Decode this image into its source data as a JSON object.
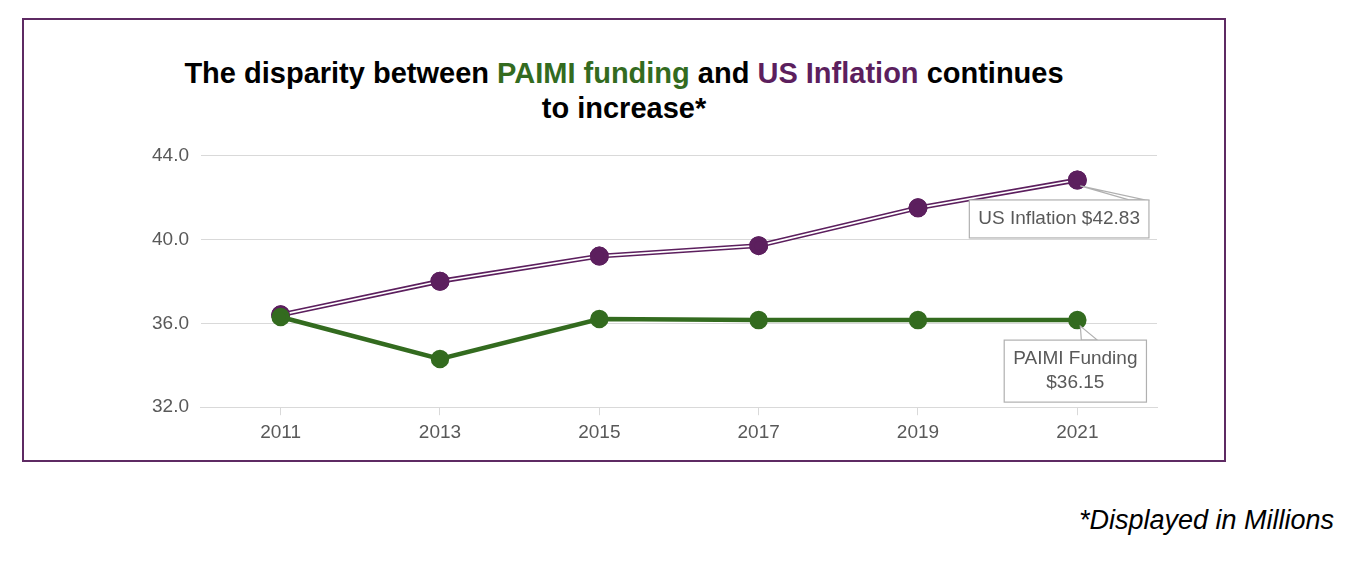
{
  "chart_data": {
    "type": "line",
    "title": "The disparity between PAIMI funding and US Inflation continues to increase*",
    "note": "*Displayed in Millions",
    "categories": [
      "2011",
      "2013",
      "2015",
      "2017",
      "2019",
      "2021"
    ],
    "series": [
      {
        "name": "PAIMI funding",
        "color": "#336b1f",
        "values": [
          36.3,
          34.3,
          36.2,
          36.15,
          36.15,
          36.15
        ],
        "marker": "circle",
        "line_style": "solid"
      },
      {
        "name": "US Inflation",
        "color": "#5c1f5e",
        "values": [
          36.4,
          38.0,
          39.2,
          39.7,
          41.5,
          42.83
        ],
        "marker": "circle",
        "line_style": "double"
      }
    ],
    "ylim": [
      32,
      44
    ],
    "yticks": [
      {
        "value": 32,
        "label": "32.0"
      },
      {
        "value": 36,
        "label": "36.0"
      },
      {
        "value": 40,
        "label": "40.0"
      },
      {
        "value": 44,
        "label": "44.0"
      }
    ],
    "grid": true,
    "annotations": [
      {
        "text": "US Inflation $42.83",
        "series": "US Inflation",
        "category": "2021"
      },
      {
        "text": "PAIMI Funding $36.15",
        "series": "PAIMI funding",
        "category": "2021"
      }
    ]
  }
}
